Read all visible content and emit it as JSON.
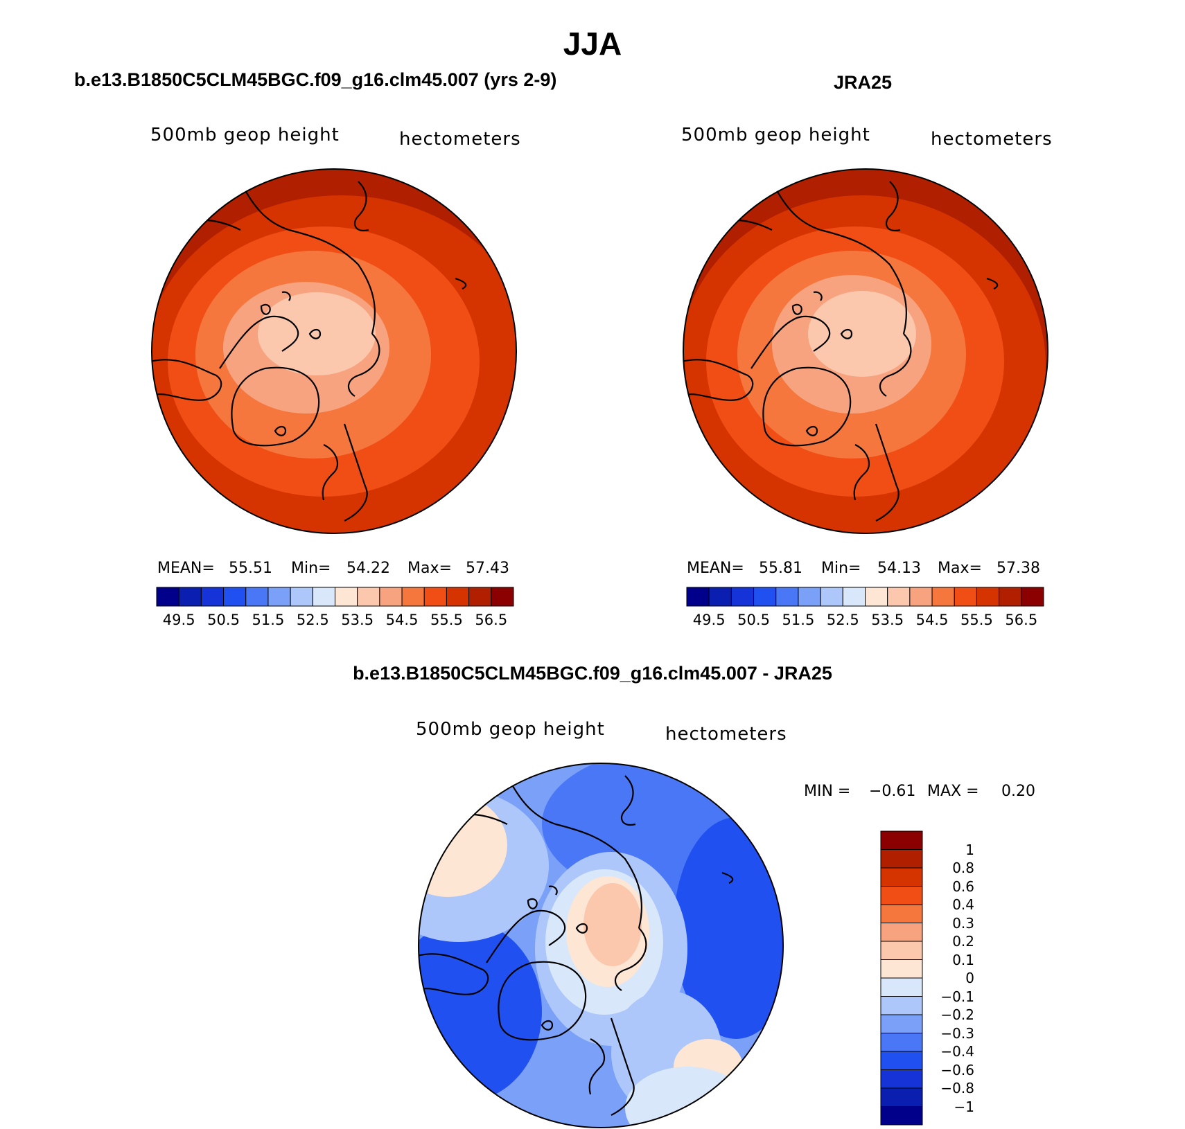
{
  "title": "JJA",
  "panels": [
    {
      "id": "model",
      "title": "b.e13.B1850C5CLM45BGC.f09_g16.clm45.007 (yrs 2-9)",
      "variable": "500mb  geop  height",
      "units": "hectometers",
      "mean_label": "MEAN=",
      "mean": "55.51",
      "min_label": "Min=",
      "min": "54.22",
      "max_label": "Max=",
      "max": "57.43"
    },
    {
      "id": "obs",
      "title": "JRA25",
      "variable": "500mb  geop  height",
      "units": "hectometers",
      "mean_label": "MEAN=",
      "mean": "55.81",
      "min_label": "Min=",
      "min": "54.13",
      "max_label": "Max=",
      "max": "57.38"
    }
  ],
  "diff": {
    "title": "b.e13.B1850C5CLM45BGC.f09_g16.clm45.007 - JRA25",
    "variable": "500mb  geop  height",
    "units": "hectometers",
    "min_label": "MIN =",
    "min": "−0.61",
    "max_label": "MAX =",
    "max": "0.20"
  },
  "colorbar_abs": {
    "colors": [
      "#00008b",
      "#0a1fb0",
      "#1533d6",
      "#2050f0",
      "#4a77f5",
      "#7aa0f7",
      "#adc7fa",
      "#d8e8fa",
      "#fde6d4",
      "#fbc8ad",
      "#f8a37f",
      "#f5773d",
      "#f04e15",
      "#d53300",
      "#b02000",
      "#8b0000"
    ],
    "labels": [
      "49.5",
      "50.5",
      "51.5",
      "52.5",
      "53.5",
      "54.5",
      "55.5",
      "56.5"
    ]
  },
  "colorbar_diff": {
    "colors": [
      "#8b0000",
      "#b02000",
      "#d53300",
      "#f04e15",
      "#f5773d",
      "#f8a37f",
      "#fbc8ad",
      "#fde6d4",
      "#d8e8fa",
      "#adc7fa",
      "#7aa0f7",
      "#4a77f5",
      "#2050f0",
      "#1533d6",
      "#0a1fb0",
      "#00008b"
    ],
    "labels": [
      "1",
      "0.8",
      "0.6",
      "0.4",
      "0.3",
      "0.2",
      "0.1",
      "0",
      "−0.1",
      "−0.2",
      "−0.3",
      "−0.4",
      "−0.6",
      "−0.8",
      "−1"
    ]
  }
}
